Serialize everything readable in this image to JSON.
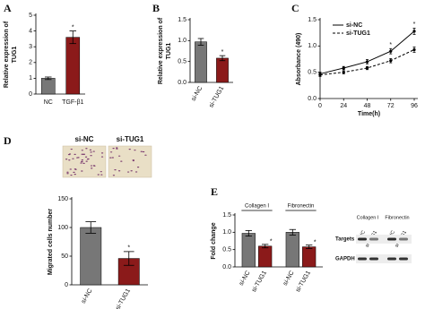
{
  "chart_data": [
    {
      "panel": "A",
      "type": "bar",
      "ylabel": [
        "Relative expression of",
        "TUG1"
      ],
      "categories": [
        "NC",
        "TGF-β1"
      ],
      "values": [
        1.0,
        3.6
      ],
      "errors": [
        0.08,
        0.4
      ],
      "colors": [
        "#777777",
        "#8b1a1a"
      ],
      "value_annotations": [
        null,
        "*"
      ],
      "ylim": [
        0,
        5
      ],
      "yticks": [
        0,
        1,
        2,
        3,
        4,
        5
      ]
    },
    {
      "panel": "B",
      "type": "bar",
      "ylabel": [
        "Relative expression of",
        "TUG1"
      ],
      "categories": [
        "si-NC",
        "si-TUG1"
      ],
      "values": [
        0.97,
        0.58
      ],
      "errors": [
        0.08,
        0.06
      ],
      "colors": [
        "#777777",
        "#8b1a1a"
      ],
      "value_annotations": [
        null,
        "*"
      ],
      "ylim": [
        0,
        1.5
      ],
      "yticks": [
        {
          "value": 0,
          "label": "0.0"
        },
        0.5,
        {
          "value": 1,
          "label": "1.0"
        },
        1.5
      ]
    },
    {
      "panel": "C",
      "type": "line",
      "ylabel": [
        "Absorbance (490)"
      ],
      "xlabel": "Time(h)",
      "x": [
        0,
        24,
        48,
        72,
        96
      ],
      "series": [
        {
          "name": "si-NC",
          "color": "#000000",
          "dash": false,
          "values": [
            0.47,
            0.58,
            0.7,
            0.9,
            1.28
          ],
          "errors": [
            0.03,
            0.03,
            0.04,
            0.05,
            0.06
          ],
          "annotations": [
            null,
            null,
            null,
            "*",
            "*"
          ]
        },
        {
          "name": "si-TUG1",
          "color": "#000000",
          "dash": true,
          "values": [
            0.45,
            0.5,
            0.58,
            0.72,
            0.93
          ],
          "errors": [
            0.03,
            0.03,
            0.03,
            0.04,
            0.05
          ],
          "annotations": [
            null,
            null,
            null,
            null,
            null
          ]
        }
      ],
      "xlim": [
        0,
        96
      ],
      "xticks": [
        0,
        24,
        48,
        72,
        96
      ],
      "ylim": [
        0,
        1.5
      ],
      "yticks": [
        {
          "value": 0,
          "label": "0.0"
        },
        0.5,
        {
          "value": 1,
          "label": "1.0"
        },
        1.5
      ],
      "legend": "upper left"
    },
    {
      "panel": "D",
      "type": "bar",
      "images": [
        "si-NC",
        "si-TUG1"
      ],
      "ylabel": [
        "Migrated cells number"
      ],
      "categories": [
        "si-NC",
        "si-TUG1"
      ],
      "values": [
        100,
        46
      ],
      "errors": [
        10,
        12
      ],
      "colors": [
        "#777777",
        "#8b1a1a"
      ],
      "value_annotations": [
        null,
        "*"
      ],
      "ylim": [
        0,
        150
      ],
      "yticks": [
        0,
        50,
        100,
        150
      ]
    },
    {
      "panel": "E",
      "type": "grouped_bar",
      "ylabel": [
        "Fold change"
      ],
      "categories": [
        "Collagen I",
        "Fibronectin"
      ],
      "series": [
        {
          "name": "si-NC",
          "color": "#777777",
          "values": [
            0.97,
            1.0
          ],
          "errors": [
            0.08,
            0.08
          ],
          "annotations": [
            null,
            null
          ]
        },
        {
          "name": "si-TUG1",
          "color": "#8b1a1a",
          "values": [
            0.6,
            0.58
          ],
          "errors": [
            0.05,
            0.05
          ],
          "annotations": [
            "*",
            "*"
          ]
        }
      ],
      "ylim": [
        0,
        1.5
      ],
      "yticks": [
        {
          "value": 0,
          "label": "0.0"
        },
        0.5,
        {
          "value": 1,
          "label": "1.0"
        },
        1.5
      ],
      "blot": {
        "groups": [
          "Collagen I",
          "Fibronectin"
        ],
        "lanes": [
          "si-NC",
          "si-TUG1",
          "si-NC",
          "si-TUG1"
        ],
        "rows": [
          "Targets",
          "GAPDH"
        ]
      }
    }
  ]
}
